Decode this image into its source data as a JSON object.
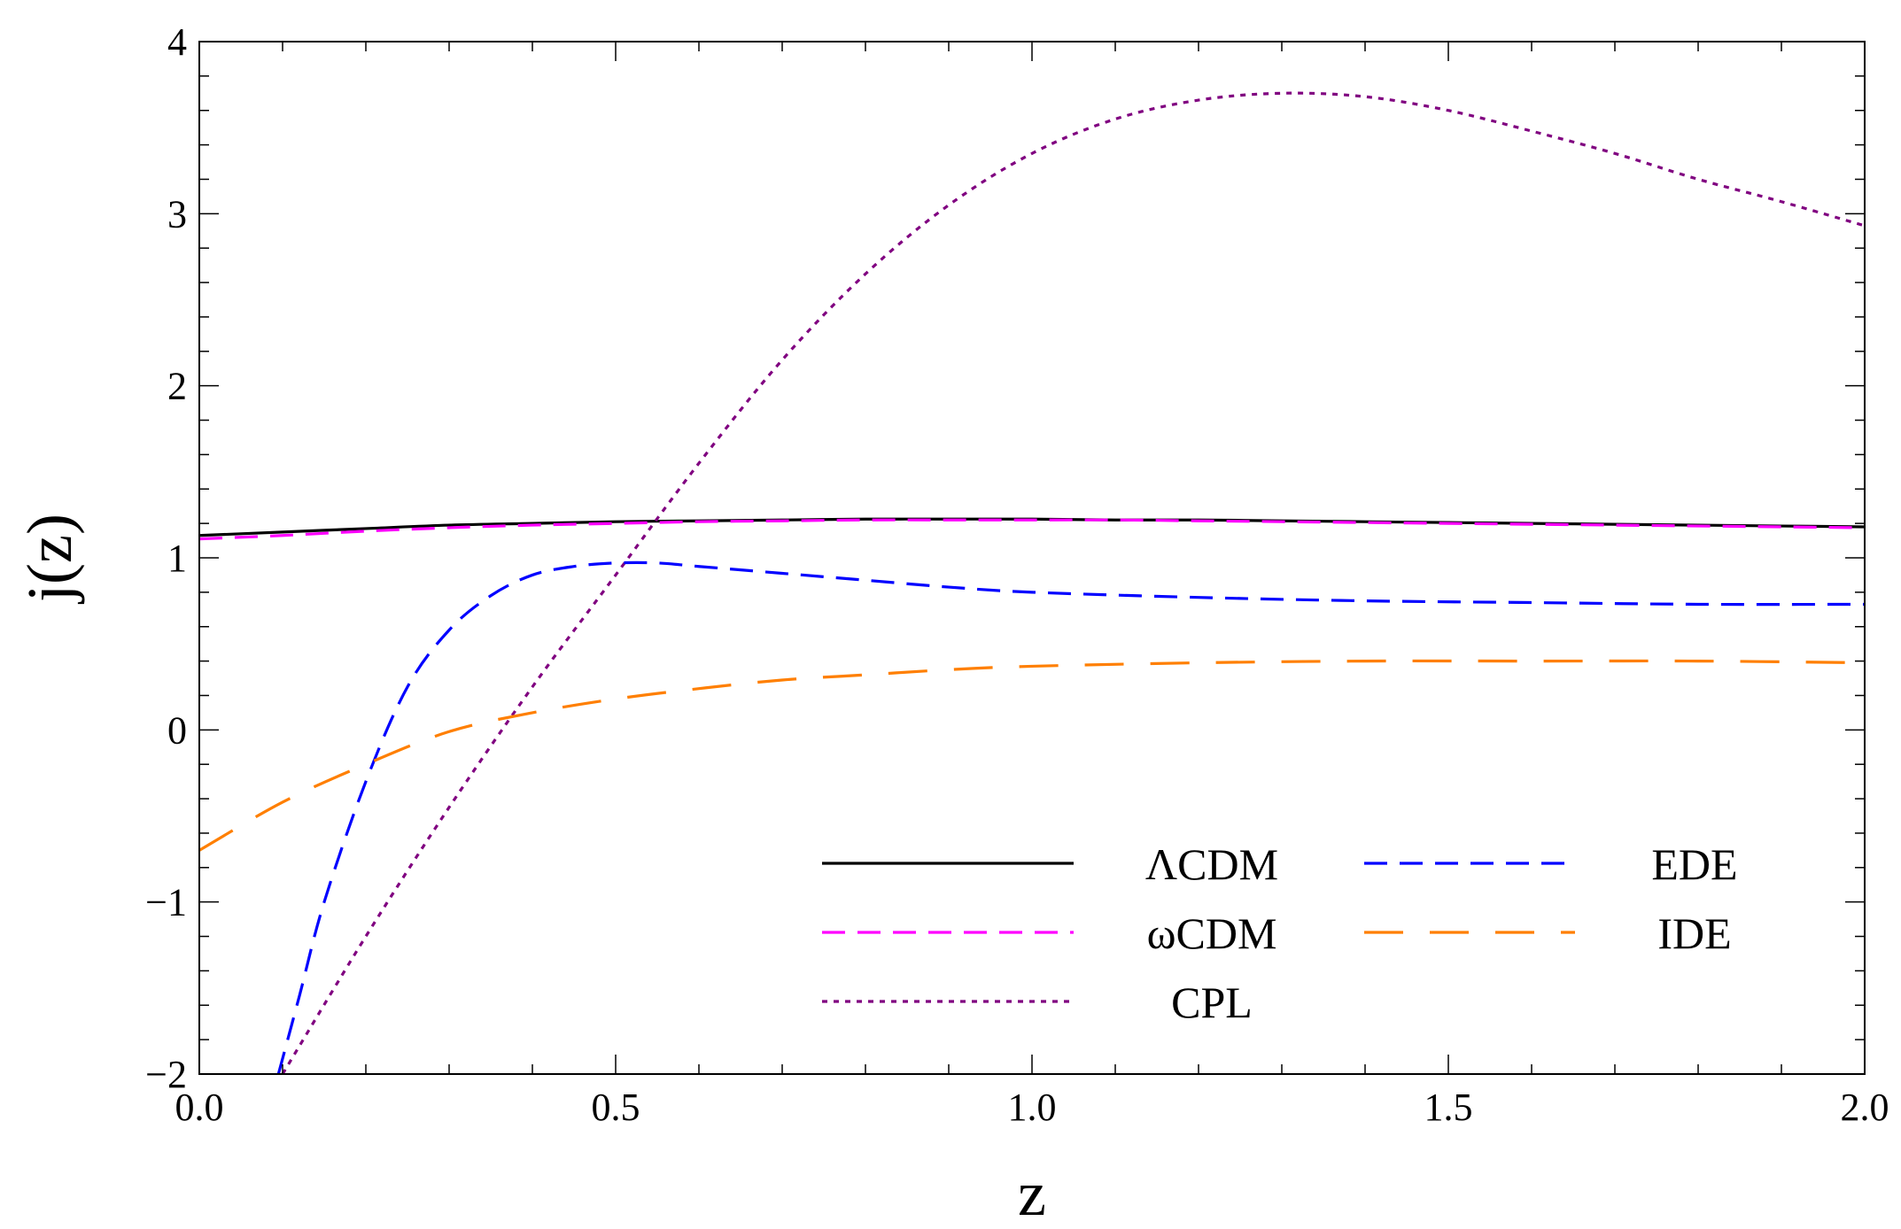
{
  "chart_data": {
    "type": "line",
    "title": "",
    "xlabel": "z",
    "ylabel": "j(z)",
    "xlim": [
      0.0,
      2.0
    ],
    "ylim": [
      -2,
      4
    ],
    "x_ticks": [
      0.0,
      0.5,
      1.0,
      1.5,
      2.0
    ],
    "x_tick_labels": [
      "0.0",
      "0.5",
      "1.0",
      "1.5",
      "2.0"
    ],
    "y_ticks": [
      -2,
      -1,
      0,
      1,
      2,
      3,
      4
    ],
    "y_tick_labels": [
      "−2",
      "−1",
      "0",
      "1",
      "2",
      "3",
      "4"
    ],
    "grid": false,
    "legend_position": "bottom-right",
    "series": [
      {
        "name": "ΛCDM",
        "color": "#000000",
        "style": "solid",
        "x": [
          0.0,
          0.1,
          0.2,
          0.3,
          0.4,
          0.5,
          0.6,
          0.7,
          0.8,
          0.9,
          1.0,
          1.1,
          1.2,
          1.3,
          1.4,
          1.5,
          1.6,
          1.7,
          1.8,
          1.9,
          2.0
        ],
        "y": [
          1.13,
          1.15,
          1.17,
          1.19,
          1.2,
          1.21,
          1.215,
          1.22,
          1.225,
          1.225,
          1.225,
          1.22,
          1.22,
          1.215,
          1.21,
          1.205,
          1.2,
          1.195,
          1.19,
          1.185,
          1.18
        ]
      },
      {
        "name": "ωCDM",
        "color": "#ff00ff",
        "style": "dashed",
        "x": [
          0.0,
          0.1,
          0.2,
          0.3,
          0.4,
          0.5,
          0.6,
          0.7,
          0.8,
          0.9,
          1.0,
          1.1,
          1.2,
          1.3,
          1.4,
          1.5,
          1.6,
          1.7,
          1.8,
          1.9,
          2.0
        ],
        "y": [
          1.11,
          1.13,
          1.155,
          1.175,
          1.19,
          1.2,
          1.21,
          1.215,
          1.22,
          1.22,
          1.22,
          1.22,
          1.215,
          1.21,
          1.205,
          1.2,
          1.195,
          1.19,
          1.185,
          1.18,
          1.175
        ]
      },
      {
        "name": "CPL",
        "color": "#800080",
        "style": "dotted",
        "x": [
          0.1,
          0.2,
          0.3,
          0.4,
          0.5,
          0.6,
          0.7,
          0.8,
          0.9,
          1.0,
          1.1,
          1.2,
          1.3,
          1.4,
          1.5,
          1.6,
          1.7,
          1.8,
          1.9,
          2.0
        ],
        "y": [
          -2.0,
          -1.2,
          -0.45,
          0.25,
          0.9,
          1.55,
          2.15,
          2.65,
          3.05,
          3.35,
          3.55,
          3.66,
          3.7,
          3.68,
          3.6,
          3.48,
          3.35,
          3.2,
          3.07,
          2.93
        ]
      },
      {
        "name": "EDE",
        "color": "#0000ff",
        "style": "dashed",
        "x": [
          0.095,
          0.12,
          0.15,
          0.2,
          0.25,
          0.3,
          0.35,
          0.4,
          0.45,
          0.5,
          0.55,
          0.6,
          0.7,
          0.8,
          0.9,
          1.0,
          1.2,
          1.4,
          1.6,
          1.8,
          2.0
        ],
        "y": [
          -2.0,
          -1.55,
          -1.0,
          -0.3,
          0.25,
          0.58,
          0.78,
          0.9,
          0.95,
          0.97,
          0.97,
          0.95,
          0.91,
          0.87,
          0.83,
          0.8,
          0.77,
          0.75,
          0.74,
          0.73,
          0.73
        ]
      },
      {
        "name": "IDE",
        "color": "#ff7f00",
        "style": "longdash",
        "x": [
          0.0,
          0.1,
          0.2,
          0.3,
          0.4,
          0.5,
          0.6,
          0.7,
          0.8,
          0.9,
          1.0,
          1.2,
          1.4,
          1.6,
          1.8,
          2.0
        ],
        "y": [
          -0.7,
          -0.42,
          -0.2,
          -0.01,
          0.1,
          0.18,
          0.24,
          0.29,
          0.32,
          0.35,
          0.37,
          0.39,
          0.4,
          0.4,
          0.4,
          0.39
        ]
      }
    ]
  }
}
